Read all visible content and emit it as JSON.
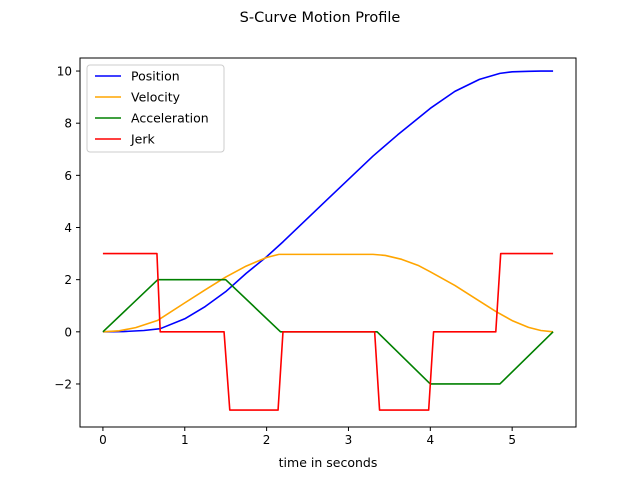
{
  "chart_data": {
    "type": "line",
    "title": "S-Curve Motion Profile",
    "xlabel": "time in seconds",
    "ylabel": "",
    "xlim": [
      -0.28,
      5.78
    ],
    "ylim": [
      -3.65,
      10.5
    ],
    "xticks": [
      0,
      1,
      2,
      3,
      4,
      5
    ],
    "xtick_labels": [
      "0",
      "1",
      "2",
      "3",
      "4",
      "5"
    ],
    "yticks": [
      -2,
      0,
      2,
      4,
      6,
      8,
      10
    ],
    "ytick_labels": [
      "−2",
      "0",
      "2",
      "4",
      "6",
      "8",
      "10"
    ],
    "grid": false,
    "legend_position": "top-left",
    "series": [
      {
        "name": "Position",
        "color": "#0000ff",
        "x": [
          0,
          0.25,
          0.5,
          0.7,
          1.0,
          1.25,
          1.5,
          1.75,
          2.0,
          2.2,
          2.75,
          3.3,
          3.6,
          4.0,
          4.3,
          4.6,
          4.85,
          5.0,
          5.2,
          5.35,
          5.5
        ],
        "y": [
          0,
          0.01,
          0.05,
          0.12,
          0.5,
          0.97,
          1.54,
          2.24,
          2.88,
          3.45,
          5.1,
          6.74,
          7.55,
          8.57,
          9.22,
          9.68,
          9.91,
          9.97,
          9.99,
          10.0,
          10.0
        ]
      },
      {
        "name": "Velocity",
        "color": "#ffa500",
        "x": [
          0,
          0.2,
          0.4,
          0.67,
          1.0,
          1.25,
          1.5,
          1.75,
          2.0,
          2.15,
          3.3,
          3.45,
          3.65,
          3.85,
          4.0,
          4.3,
          4.6,
          4.8,
          5.0,
          5.2,
          5.35,
          5.5
        ],
        "y": [
          0,
          0.04,
          0.16,
          0.44,
          1.11,
          1.61,
          2.1,
          2.52,
          2.85,
          2.97,
          2.97,
          2.93,
          2.78,
          2.55,
          2.3,
          1.78,
          1.18,
          0.78,
          0.43,
          0.17,
          0.05,
          0
        ]
      },
      {
        "name": "Acceleration",
        "color": "#008000",
        "x": [
          0,
          0.67,
          1.5,
          2.17,
          3.35,
          4.0,
          4.85,
          5.5
        ],
        "y": [
          0,
          2,
          2,
          0,
          0,
          -2,
          -2,
          0
        ]
      },
      {
        "name": "Jerk",
        "color": "#ff0000",
        "x": [
          0,
          0.66,
          0.7,
          1.48,
          1.55,
          2.14,
          2.2,
          3.32,
          3.38,
          3.98,
          4.04,
          4.8,
          4.86,
          5.5
        ],
        "y": [
          3,
          3,
          0,
          0,
          -3,
          -3,
          0,
          0,
          -3,
          -3,
          0,
          0,
          3,
          3
        ]
      }
    ]
  }
}
